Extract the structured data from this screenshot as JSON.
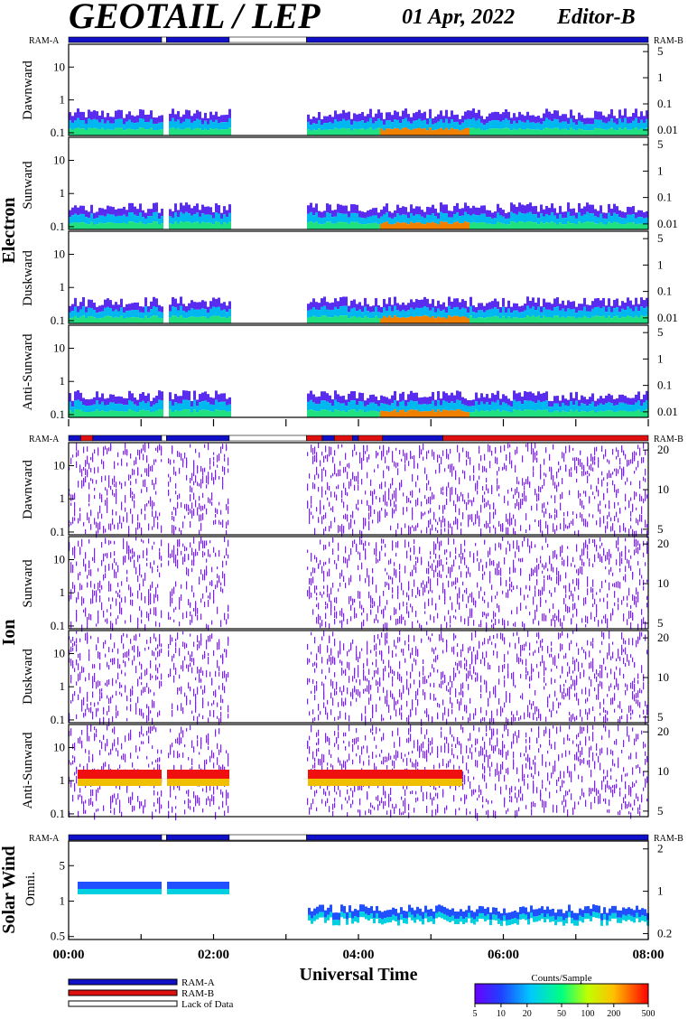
{
  "header": {
    "title": "GEOTAIL / LEP",
    "date": "01 Apr, 2022",
    "editor": "Editor-B"
  },
  "colors": {
    "ram_a": "#1010c8",
    "ram_b": "#e01010",
    "lack": "#ffffff"
  },
  "chart_data": {
    "type": "heatmap",
    "x_axis": {
      "label": "Universal Time",
      "range": [
        "00:00",
        "08:00"
      ],
      "ticks": [
        "00:00",
        "02:00",
        "04:00",
        "06:00",
        "08:00"
      ]
    },
    "gaps": [
      [
        "01:17",
        "01:21"
      ],
      [
        "02:13",
        "03:17"
      ]
    ],
    "groups": [
      {
        "name": "Electron",
        "ram_label_left": "RAM-A",
        "ram_label_right": "RAM-B",
        "mode_bar": [
          {
            "from": "00:00",
            "to": "01:17",
            "mode": "ram_a"
          },
          {
            "from": "01:17",
            "to": "01:21",
            "mode": "lack"
          },
          {
            "from": "01:21",
            "to": "02:13",
            "mode": "ram_a"
          },
          {
            "from": "02:13",
            "to": "03:17",
            "mode": "lack"
          },
          {
            "from": "03:17",
            "to": "08:00",
            "mode": "ram_a"
          }
        ],
        "panels": [
          {
            "label": "Dawnward",
            "left_ticks": [
              "10",
              "1",
              "0.1"
            ],
            "right_ticks": [
              "5",
              "1",
              "0.1",
              "0.01"
            ]
          },
          {
            "label": "Sunward",
            "left_ticks": [
              "10",
              "1",
              "0.1"
            ],
            "right_ticks": [
              "5",
              "1",
              "0.1",
              "0.01"
            ]
          },
          {
            "label": "Duskward",
            "left_ticks": [
              "10",
              "1",
              "0.1"
            ],
            "right_ticks": [
              "5",
              "1",
              "0.1",
              "0.01"
            ]
          },
          {
            "label": "Anti-Sunward",
            "left_ticks": [
              "10",
              "1",
              "0.1"
            ],
            "right_ticks": [
              "5",
              "1",
              "0.1",
              "0.01"
            ]
          }
        ]
      },
      {
        "name": "Ion",
        "ram_label_left": "RAM-A",
        "ram_label_right": "RAM-B",
        "mode_bar": [
          {
            "from": "00:00",
            "to": "00:10",
            "mode": "ram_a"
          },
          {
            "from": "00:10",
            "to": "00:20",
            "mode": "ram_b"
          },
          {
            "from": "00:20",
            "to": "01:17",
            "mode": "ram_a"
          },
          {
            "from": "01:17",
            "to": "01:21",
            "mode": "lack"
          },
          {
            "from": "01:21",
            "to": "02:13",
            "mode": "ram_a"
          },
          {
            "from": "02:13",
            "to": "03:17",
            "mode": "lack"
          },
          {
            "from": "03:17",
            "to": "03:30",
            "mode": "ram_b"
          },
          {
            "from": "03:30",
            "to": "03:40",
            "mode": "ram_a"
          },
          {
            "from": "03:40",
            "to": "03:55",
            "mode": "ram_b"
          },
          {
            "from": "03:55",
            "to": "04:00",
            "mode": "ram_a"
          },
          {
            "from": "04:00",
            "to": "04:20",
            "mode": "ram_b"
          },
          {
            "from": "04:20",
            "to": "05:10",
            "mode": "ram_a"
          },
          {
            "from": "05:10",
            "to": "08:00",
            "mode": "ram_b"
          }
        ],
        "panels": [
          {
            "label": "Dawnward",
            "left_ticks": [
              "10",
              "1",
              "0.1"
            ],
            "right_ticks": [
              "20",
              "10",
              "5"
            ]
          },
          {
            "label": "Sunward",
            "left_ticks": [
              "10",
              "1",
              "0.1"
            ],
            "right_ticks": [
              "20",
              "10",
              "5"
            ]
          },
          {
            "label": "Duskward",
            "left_ticks": [
              "10",
              "1",
              "0.1"
            ],
            "right_ticks": [
              "20",
              "10",
              "5"
            ]
          },
          {
            "label": "Anti-Sunward",
            "left_ticks": [
              "10",
              "1",
              "0.1"
            ],
            "right_ticks": [
              "20",
              "10",
              "5"
            ]
          }
        ]
      },
      {
        "name": "Solar Wind",
        "ram_label_left": "RAM-A",
        "ram_label_right": "RAM-B",
        "mode_bar": [
          {
            "from": "00:00",
            "to": "01:17",
            "mode": "ram_a"
          },
          {
            "from": "01:17",
            "to": "01:21",
            "mode": "lack"
          },
          {
            "from": "01:21",
            "to": "02:13",
            "mode": "ram_a"
          },
          {
            "from": "02:13",
            "to": "03:17",
            "mode": "lack"
          },
          {
            "from": "03:17",
            "to": "08:00",
            "mode": "ram_a"
          }
        ],
        "panels": [
          {
            "label": "Omni.",
            "left_ticks": [
              "5",
              "1",
              "0.5"
            ],
            "right_ticks": [
              "2",
              "1",
              "0.2"
            ]
          }
        ]
      }
    ],
    "legend": {
      "items": [
        {
          "label": "RAM-A",
          "mode": "ram_a"
        },
        {
          "label": "RAM-B",
          "mode": "ram_b"
        },
        {
          "label": "Lack of Data",
          "mode": "lack"
        }
      ]
    },
    "colorbar": {
      "title": "Counts/Sample",
      "ticks": [
        "5",
        "10",
        "20",
        "50",
        "100",
        "200",
        "500"
      ],
      "scale": "log",
      "range": [
        5,
        500
      ]
    }
  }
}
